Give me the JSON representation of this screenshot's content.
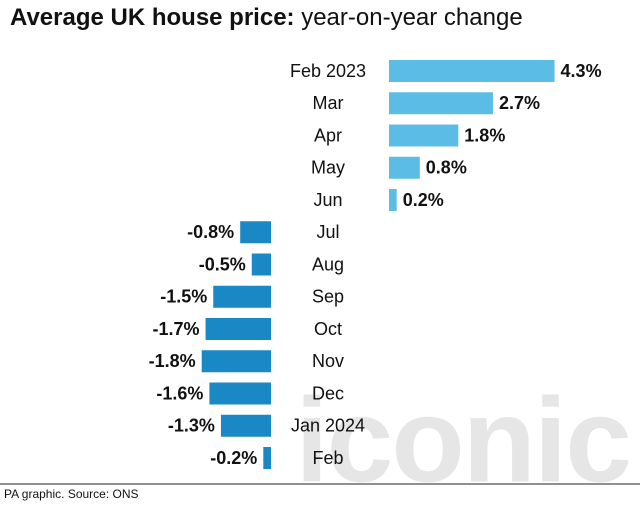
{
  "chart_data": {
    "type": "diverging-bar",
    "title": "Average UK house price:",
    "subtitle": "year-on-year change",
    "categories": [
      "Feb 2023",
      "Mar",
      "Apr",
      "May",
      "Jun",
      "Jul",
      "Aug",
      "Sep",
      "Oct",
      "Nov",
      "Dec",
      "Jan 2024",
      "Feb"
    ],
    "values": [
      4.3,
      2.7,
      1.8,
      0.8,
      0.2,
      -0.8,
      -0.5,
      -1.5,
      -1.7,
      -1.8,
      -1.6,
      -1.3,
      -0.2
    ],
    "value_labels": [
      "4.3%",
      "2.7%",
      "1.8%",
      "0.8%",
      "0.2%",
      "-0.8%",
      "-0.5%",
      "-1.5%",
      "-1.7%",
      "-1.8%",
      "-1.6%",
      "-1.3%",
      "-0.2%"
    ],
    "positive_color": "#5bbde6",
    "negative_color": "#1a88c4",
    "source": "PA graphic. Source: ONS",
    "watermark": "iconic"
  }
}
